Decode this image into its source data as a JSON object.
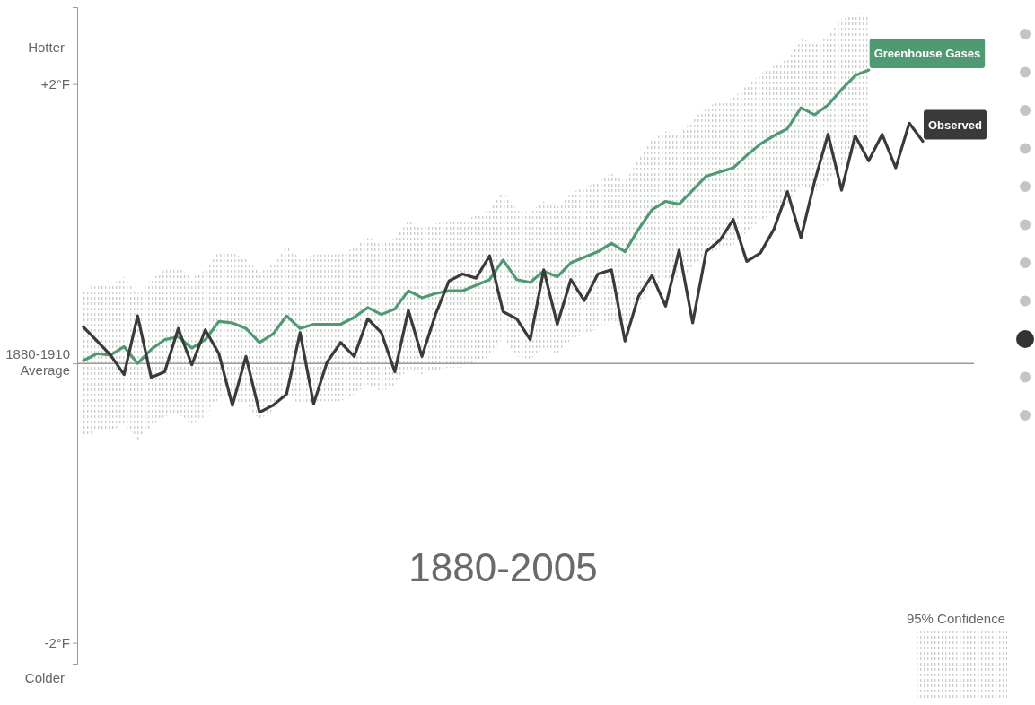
{
  "chart_data": {
    "type": "line",
    "annotations": [
      "Hotter",
      "Colder",
      "1880-2005",
      "95% Confidence"
    ],
    "categories": [
      null,
      null,
      null,
      null,
      null,
      null,
      null,
      null,
      null,
      null,
      null,
      null,
      null,
      null,
      null,
      null,
      null,
      null,
      null,
      null,
      null,
      null,
      null,
      null,
      null,
      null,
      null,
      null,
      null,
      null,
      null,
      null,
      null,
      null,
      null,
      null,
      null,
      null,
      null,
      null,
      null,
      null,
      null,
      null,
      null,
      null,
      null,
      null,
      null,
      null,
      null,
      null,
      null,
      null,
      null,
      null,
      null,
      null,
      null,
      null,
      null,
      null,
      null
    ],
    "ylim": [
      -2.15,
      2.55
    ],
    "yticks": [
      {
        "value": 2,
        "label": "+2°F"
      },
      {
        "value": 0,
        "label": "1880-1910 Average"
      },
      {
        "value": -2,
        "label": "-2°F"
      }
    ],
    "tick_labels": "y",
    "ref_lines": [
      {
        "axis": "y",
        "value": 0,
        "color": "#999999"
      }
    ],
    "series": [
      {
        "name": "Greenhouse Gases",
        "color": "#4f9a72",
        "values": [
          0.02,
          0.07,
          0.06,
          0.12,
          0,
          0.1,
          0.17,
          0.19,
          0.11,
          0.17,
          0.3,
          0.29,
          0.25,
          0.15,
          0.21,
          0.34,
          0.25,
          0.28,
          0.28,
          0.28,
          0.33,
          0.4,
          0.35,
          0.39,
          0.52,
          0.47,
          0.5,
          0.52,
          0.52,
          0.56,
          0.6,
          0.74,
          0.6,
          0.58,
          0.66,
          0.62,
          0.72,
          0.76,
          0.8,
          0.86,
          0.8,
          0.96,
          1.1,
          1.16,
          1.14,
          1.24,
          1.34,
          1.37,
          1.4,
          1.49,
          1.57,
          1.63,
          1.68,
          1.83,
          1.78,
          1.85,
          1.96,
          2.06,
          2.1,
          null,
          null,
          null,
          null
        ],
        "upper": [
          0.52,
          0.57,
          0.56,
          0.62,
          0.5,
          0.6,
          0.67,
          0.69,
          0.61,
          0.67,
          0.8,
          0.79,
          0.75,
          0.65,
          0.71,
          0.84,
          0.75,
          0.78,
          0.78,
          0.78,
          0.83,
          0.9,
          0.85,
          0.89,
          1.02,
          0.97,
          1,
          1.02,
          1.02,
          1.06,
          1.1,
          1.24,
          1.1,
          1.08,
          1.16,
          1.12,
          1.22,
          1.26,
          1.3,
          1.36,
          1.3,
          1.46,
          1.6,
          1.66,
          1.64,
          1.74,
          1.84,
          1.87,
          1.9,
          1.99,
          2.07,
          2.13,
          2.18,
          2.33,
          2.28,
          2.35,
          2.46,
          2.5,
          2.5,
          null,
          null,
          null,
          null
        ],
        "lower": [
          -0.53,
          -0.48,
          -0.49,
          -0.43,
          -0.55,
          -0.45,
          -0.38,
          -0.36,
          -0.44,
          -0.38,
          -0.25,
          -0.26,
          -0.3,
          -0.4,
          -0.34,
          -0.21,
          -0.3,
          -0.27,
          -0.27,
          -0.27,
          -0.22,
          -0.15,
          -0.2,
          -0.16,
          -0.03,
          -0.08,
          -0.05,
          -0.03,
          -0.03,
          0.01,
          0.05,
          0.19,
          0.05,
          0.03,
          0.11,
          0.07,
          0.17,
          0.21,
          0.25,
          0.31,
          0.25,
          0.41,
          0.55,
          0.61,
          0.59,
          0.69,
          0.79,
          0.82,
          0.85,
          0.94,
          1.02,
          1.08,
          1.13,
          1.28,
          1.23,
          1.3,
          1.41,
          1.51,
          1.55,
          null,
          null,
          null,
          null
        ]
      },
      {
        "name": "Observed",
        "color": "#3a3a3a",
        "values": [
          0.26,
          0.16,
          0.06,
          -0.08,
          0.34,
          -0.1,
          -0.06,
          0.25,
          -0.01,
          0.24,
          0.07,
          -0.3,
          0.05,
          -0.35,
          -0.3,
          -0.22,
          0.22,
          -0.29,
          0.01,
          0.15,
          0.05,
          0.32,
          0.22,
          -0.06,
          0.38,
          0.05,
          0.35,
          0.59,
          0.64,
          0.61,
          0.77,
          0.37,
          0.32,
          0.17,
          0.67,
          0.28,
          0.6,
          0.45,
          0.64,
          0.67,
          0.16,
          0.48,
          0.63,
          0.41,
          0.81,
          0.29,
          0.8,
          0.88,
          1.03,
          0.73,
          0.79,
          0.96,
          1.23,
          0.9,
          1.3,
          1.64,
          1.24,
          1.63,
          1.45,
          1.64,
          1.4,
          1.72,
          1.59
        ]
      }
    ]
  }
}
